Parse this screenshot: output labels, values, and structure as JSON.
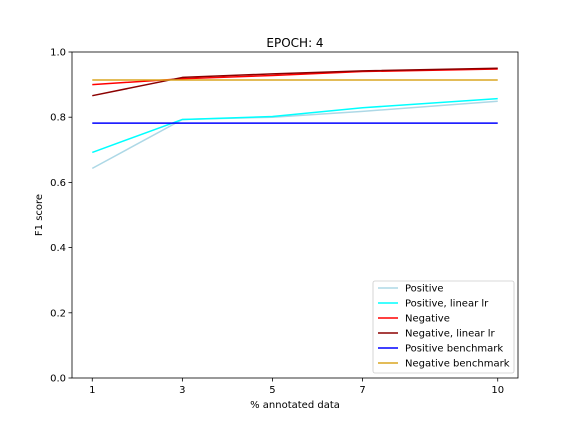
{
  "chart_data": {
    "type": "line",
    "title": "EPOCH: 4",
    "xlabel": "% annotated data",
    "ylabel": "F1 score",
    "xlim": [
      0.55,
      10.45
    ],
    "ylim": [
      0.0,
      1.0
    ],
    "xticks": [
      1,
      3,
      5,
      7,
      10
    ],
    "yticks": [
      0.0,
      0.2,
      0.4,
      0.6,
      0.8,
      1.0
    ],
    "grid": false,
    "legend_position": "lower-right",
    "x": [
      1,
      3,
      5,
      7,
      10
    ],
    "series": [
      {
        "name": "Positive",
        "color": "#add8e6",
        "values": [
          0.643,
          0.793,
          0.8,
          0.818,
          0.849
        ]
      },
      {
        "name": "Positive, linear lr",
        "color": "#00ffff",
        "values": [
          0.692,
          0.793,
          0.802,
          0.829,
          0.857
        ]
      },
      {
        "name": "Negative",
        "color": "#ff0000",
        "values": [
          0.9,
          0.918,
          0.928,
          0.94,
          0.948
        ]
      },
      {
        "name": "Negative, linear lr",
        "color": "#8b0000",
        "values": [
          0.866,
          0.922,
          0.933,
          0.942,
          0.95
        ]
      },
      {
        "name": "Positive benchmark",
        "color": "#0000ff",
        "values": [
          0.782,
          0.782,
          0.782,
          0.782,
          0.782
        ]
      },
      {
        "name": "Negative benchmark",
        "color": "#daa520",
        "values": [
          0.914,
          0.914,
          0.914,
          0.914,
          0.914
        ]
      }
    ]
  }
}
